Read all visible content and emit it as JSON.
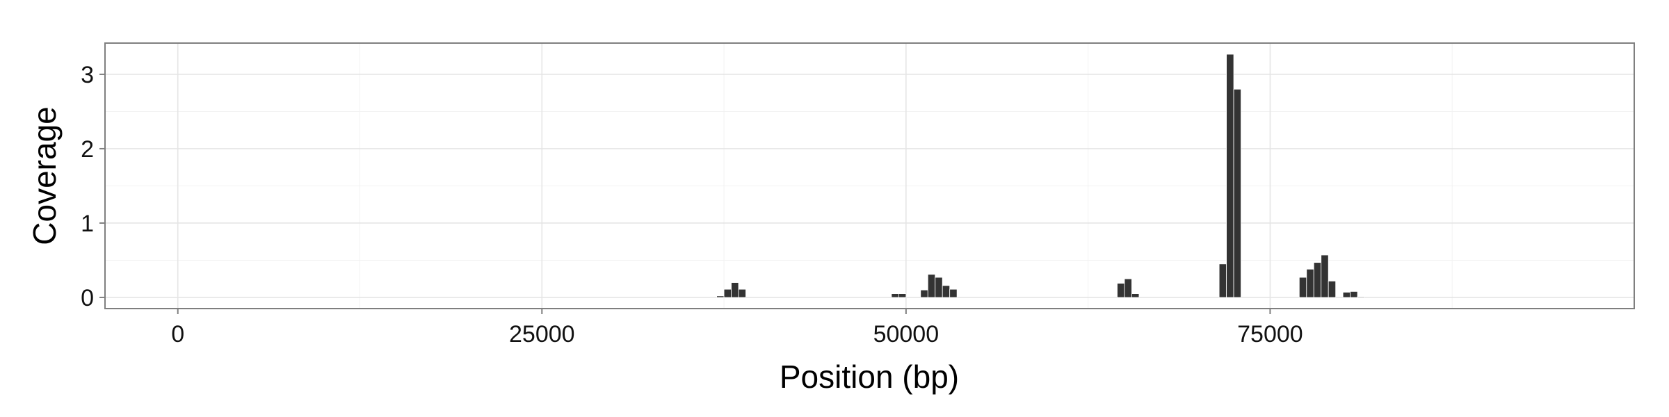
{
  "chart_data": {
    "type": "bar",
    "title": "",
    "xlabel": "Position (bp)",
    "ylabel": "Coverage",
    "xlim": [
      -5000,
      100000
    ],
    "ylim": [
      -0.15,
      3.42
    ],
    "x_ticks": [
      0,
      25000,
      50000,
      75000
    ],
    "x_tick_labels": [
      "0",
      "25000",
      "50000",
      "75000"
    ],
    "y_ticks": [
      0,
      1,
      2,
      3
    ],
    "y_tick_labels": [
      "0",
      "1",
      "2",
      "3"
    ],
    "bin_width": 500,
    "grid": true,
    "legend": "none",
    "colors": {
      "bar": "#333333",
      "panel_border": "#7f7f7f",
      "grid_major": "#e5e5e5",
      "grid_minor": "#f2f2f2"
    },
    "bars": [
      {
        "x": 37250,
        "value": 0.02
      },
      {
        "x": 37750,
        "value": 0.11
      },
      {
        "x": 38250,
        "value": 0.2
      },
      {
        "x": 38750,
        "value": 0.11
      },
      {
        "x": 49250,
        "value": 0.05
      },
      {
        "x": 49750,
        "value": 0.05
      },
      {
        "x": 51250,
        "value": 0.1
      },
      {
        "x": 51750,
        "value": 0.31
      },
      {
        "x": 52250,
        "value": 0.27
      },
      {
        "x": 52750,
        "value": 0.16
      },
      {
        "x": 53250,
        "value": 0.11
      },
      {
        "x": 64750,
        "value": 0.19
      },
      {
        "x": 65250,
        "value": 0.25
      },
      {
        "x": 65750,
        "value": 0.05
      },
      {
        "x": 71750,
        "value": 0.45
      },
      {
        "x": 72250,
        "value": 3.27
      },
      {
        "x": 72750,
        "value": 2.8
      },
      {
        "x": 77250,
        "value": 0.27
      },
      {
        "x": 77750,
        "value": 0.38
      },
      {
        "x": 78250,
        "value": 0.47
      },
      {
        "x": 78750,
        "value": 0.57
      },
      {
        "x": 79250,
        "value": 0.22
      },
      {
        "x": 80250,
        "value": 0.07
      },
      {
        "x": 80750,
        "value": 0.08
      },
      {
        "x": 81250,
        "value": 0.01
      }
    ]
  }
}
